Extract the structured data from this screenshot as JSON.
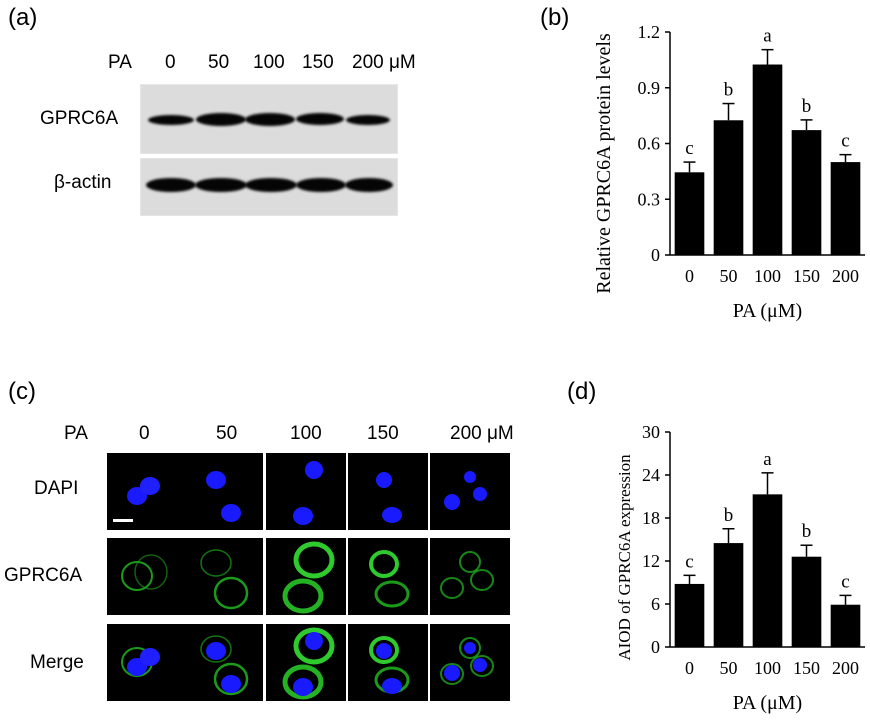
{
  "panels": {
    "a": {
      "label": "(a)",
      "treatment_label": "PA",
      "lanes": [
        "0",
        "50",
        "100",
        "150",
        "200 μM"
      ],
      "rows": [
        "GPRC6A",
        "β-actin"
      ]
    },
    "b": {
      "label": "(b)"
    },
    "c": {
      "label": "(c)",
      "treatment_label": "PA",
      "columns": [
        "0",
        "50",
        "100",
        "150",
        "200 μM"
      ],
      "rows": [
        "DAPI",
        "GPRC6A",
        "Merge"
      ]
    },
    "d": {
      "label": "(d)"
    }
  },
  "colors": {
    "bar": "#000000",
    "dapi": "#1a1aff",
    "gprc6a": "#22c022"
  },
  "chart_data": [
    {
      "type": "bar",
      "categories": [
        "0",
        "50",
        "100",
        "150",
        "200"
      ],
      "values": [
        0.445,
        0.725,
        1.025,
        0.672,
        0.5
      ],
      "errors": [
        0.055,
        0.09,
        0.08,
        0.055,
        0.04
      ],
      "letters": [
        "c",
        "b",
        "a",
        "b",
        "c"
      ],
      "ylabel": "Relative  GPRC6A  protein levels",
      "xlabel": "PA (μM)",
      "ylim": [
        0,
        1.2
      ],
      "yticks": [
        "0",
        "0.3",
        "0.6",
        "0.9",
        "1.2"
      ]
    },
    {
      "type": "bar",
      "categories": [
        "0",
        "50",
        "100",
        "150",
        "200"
      ],
      "values": [
        8.8,
        14.5,
        21.3,
        12.6,
        5.9
      ],
      "errors": [
        1.2,
        2.0,
        3.0,
        1.6,
        1.3
      ],
      "letters": [
        "c",
        "b",
        "a",
        "b",
        "c"
      ],
      "ylabel": "AIOD of GPRC6A expression",
      "xlabel": "PA (μM)",
      "ylim": [
        0,
        30
      ],
      "yticks": [
        "0",
        "6",
        "12",
        "18",
        "24",
        "30"
      ]
    }
  ]
}
